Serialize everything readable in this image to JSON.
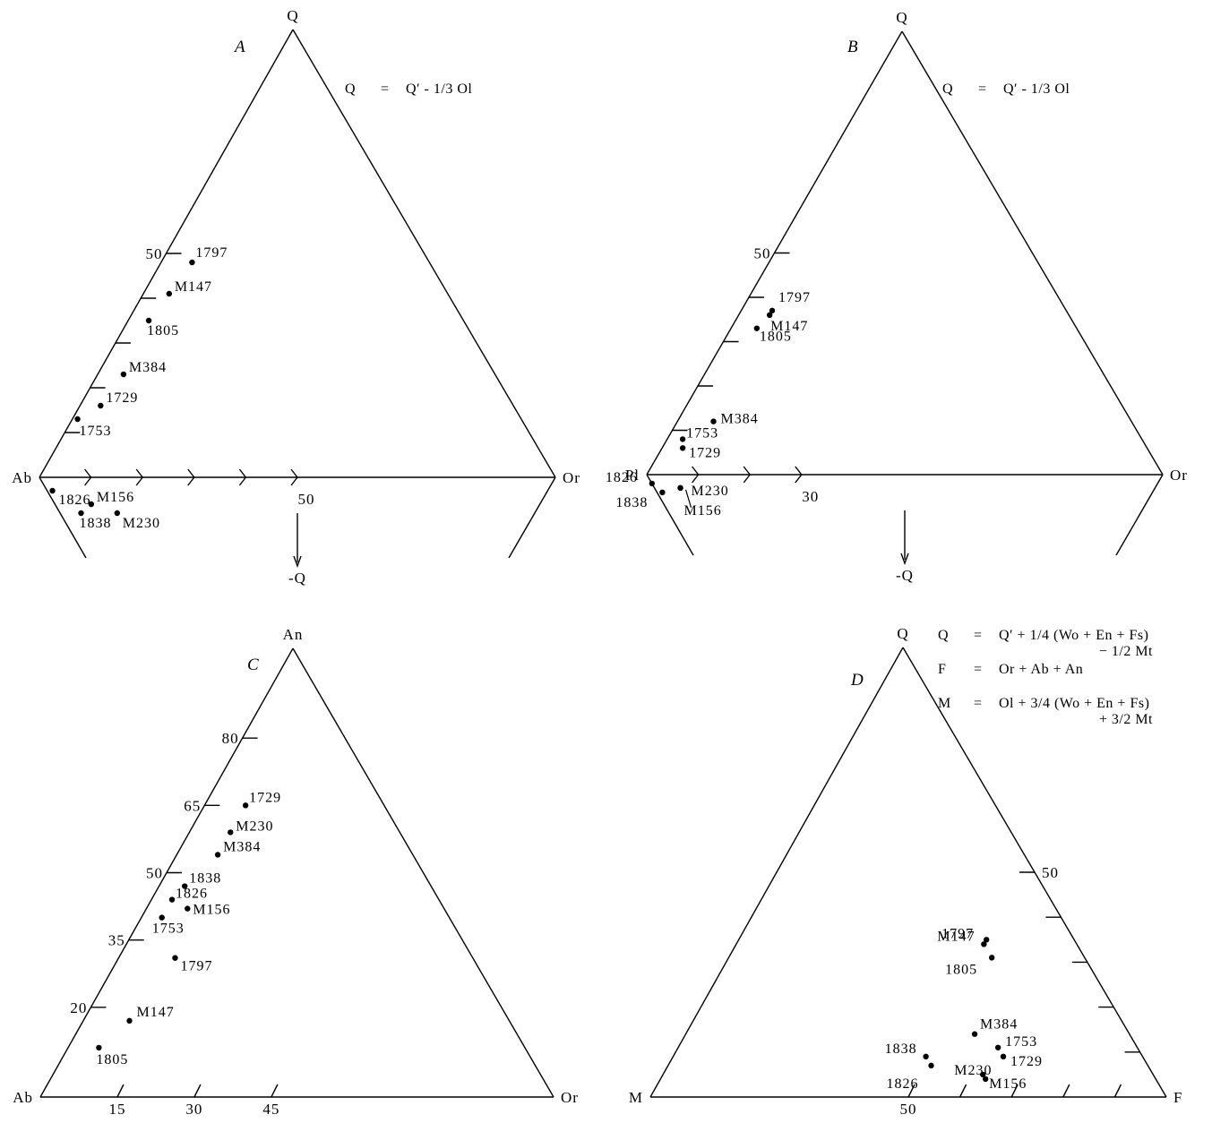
{
  "figure": {
    "colors": {
      "ink": "#000000",
      "paper": "#ffffff"
    }
  },
  "chart_data": [
    {
      "panel": "A",
      "type": "scatter",
      "diagram": "ternary Q-Ab-Or with -Q extension",
      "vertices": {
        "top": "Q",
        "left": "Ab",
        "right": "Or"
      },
      "below_arrow_label": "-Q",
      "formula": [
        {
          "lhs": "Q",
          "op": "=",
          "rhs": "Q′ - 1/3 Ol"
        }
      ],
      "tick_labels": {
        "q_side": [
          "50"
        ],
        "base": [
          "50"
        ]
      },
      "points": [
        {
          "label": "1797",
          "Q": 48,
          "Ab": 46,
          "Or": 6
        },
        {
          "label": "M147",
          "Q": 41,
          "Ab": 54,
          "Or": 5
        },
        {
          "label": "1805",
          "Q": 35,
          "Ab": 61,
          "Or": 4
        },
        {
          "label": "M384",
          "Q": 23,
          "Ab": 72,
          "Or": 5
        },
        {
          "label": "1729",
          "Q": 16,
          "Ab": 80,
          "Or": 4
        },
        {
          "label": "1753",
          "Q": 13,
          "Ab": 86,
          "Or": 1
        },
        {
          "label": "1826",
          "Q": -3,
          "Ab": 99,
          "Or": 4
        },
        {
          "label": "M156",
          "Q": -6,
          "Ab": 93,
          "Or": 13
        },
        {
          "label": "1838",
          "Q": -8,
          "Ab": 96,
          "Or": 12
        },
        {
          "label": "M230",
          "Q": -8,
          "Ab": 89,
          "Or": 19
        }
      ]
    },
    {
      "panel": "B",
      "type": "scatter",
      "diagram": "ternary Q-Pl-Or with -Q extension",
      "vertices": {
        "top": "Q",
        "left": "Pl",
        "right": "Or"
      },
      "below_arrow_label": "-Q",
      "formula": [
        {
          "lhs": "Q",
          "op": "=",
          "rhs": "Q′ - 1/3 Ol"
        }
      ],
      "tick_labels": {
        "q_side": [
          "50"
        ],
        "base": [
          "30"
        ]
      },
      "points": [
        {
          "label": "1797",
          "Q": 37,
          "Pl": 57,
          "Or": 6
        },
        {
          "label": "M147",
          "Q": 36,
          "Pl": 58,
          "Or": 6
        },
        {
          "label": "1805",
          "Q": 33,
          "Pl": 62,
          "Or": 5
        },
        {
          "label": "M384",
          "Q": 12,
          "Pl": 81,
          "Or": 7
        },
        {
          "label": "1753",
          "Q": 8,
          "Pl": 89,
          "Or": 3
        },
        {
          "label": "1729",
          "Q": 6,
          "Pl": 90,
          "Or": 4
        },
        {
          "label": "1826",
          "Q": -2,
          "Pl": 100,
          "Or": 2
        },
        {
          "label": "1838",
          "Q": -4,
          "Pl": 99,
          "Or": 5
        },
        {
          "label": "M230",
          "Q": -3,
          "Pl": 95,
          "Or": 8
        },
        {
          "label": "M156",
          "Q": -3,
          "Pl": 95,
          "Or": 8
        }
      ]
    },
    {
      "panel": "C",
      "type": "scatter",
      "diagram": "ternary An-Ab-Or",
      "vertices": {
        "top": "An",
        "left": "Ab",
        "right": "Or"
      },
      "tick_labels": {
        "an_side": [
          "20",
          "35",
          "50",
          "65",
          "80"
        ],
        "base": [
          "15",
          "30",
          "45"
        ]
      },
      "points": [
        {
          "label": "1729",
          "An": 65,
          "Ab": 27,
          "Or": 8
        },
        {
          "label": "M230",
          "An": 59,
          "Ab": 33,
          "Or": 8
        },
        {
          "label": "M384",
          "An": 54,
          "Ab": 38,
          "Or": 8
        },
        {
          "label": "1838",
          "An": 47,
          "Ab": 48,
          "Or": 5
        },
        {
          "label": "1826",
          "An": 44,
          "Ab": 52,
          "Or": 4
        },
        {
          "label": "M156",
          "An": 42,
          "Ab": 50,
          "Or": 8
        },
        {
          "label": "1753",
          "An": 40,
          "Ab": 56,
          "Or": 4
        },
        {
          "label": "1797",
          "An": 31,
          "Ab": 58,
          "Or": 11
        },
        {
          "label": "M147",
          "An": 17,
          "Ab": 74,
          "Or": 9
        },
        {
          "label": "1805",
          "An": 11,
          "Ab": 83,
          "Or": 6
        }
      ]
    },
    {
      "panel": "D",
      "type": "scatter",
      "diagram": "ternary Q-M-F",
      "vertices": {
        "top": "Q",
        "left": "M",
        "right": "F"
      },
      "formula": [
        {
          "lhs": "Q",
          "op": "=",
          "rhs": "Q′ + 1/4 (Wo + En + Fs)",
          "cont": "− 1/2 Mt"
        },
        {
          "lhs": "F",
          "op": "=",
          "rhs": "Or + Ab + An",
          "cont": ""
        },
        {
          "lhs": "M",
          "op": "=",
          "rhs": "Ol + 3/4 (Wo + En + Fs)",
          "cont": "+ 3/2 Mt"
        }
      ],
      "tick_labels": {
        "q_side": [
          "50"
        ],
        "base": [
          "50"
        ]
      },
      "points": [
        {
          "label": "1797",
          "Q": 35,
          "M": 17,
          "F": 48
        },
        {
          "label": "M147",
          "Q": 34,
          "M": 18,
          "F": 48
        },
        {
          "label": "1805",
          "Q": 31,
          "M": 18,
          "F": 51
        },
        {
          "label": "M384",
          "Q": 14,
          "M": 30,
          "F": 56
        },
        {
          "label": "1753",
          "Q": 11,
          "M": 27,
          "F": 62
        },
        {
          "label": "1729",
          "Q": 9,
          "M": 27,
          "F": 64
        },
        {
          "label": "1838",
          "Q": 9,
          "M": 42,
          "F": 49
        },
        {
          "label": "1826",
          "Q": 7,
          "M": 42,
          "F": 51
        },
        {
          "label": "M230",
          "Q": 5,
          "M": 33,
          "F": 62
        },
        {
          "label": "M156",
          "Q": 4,
          "M": 33,
          "F": 63
        }
      ]
    }
  ]
}
